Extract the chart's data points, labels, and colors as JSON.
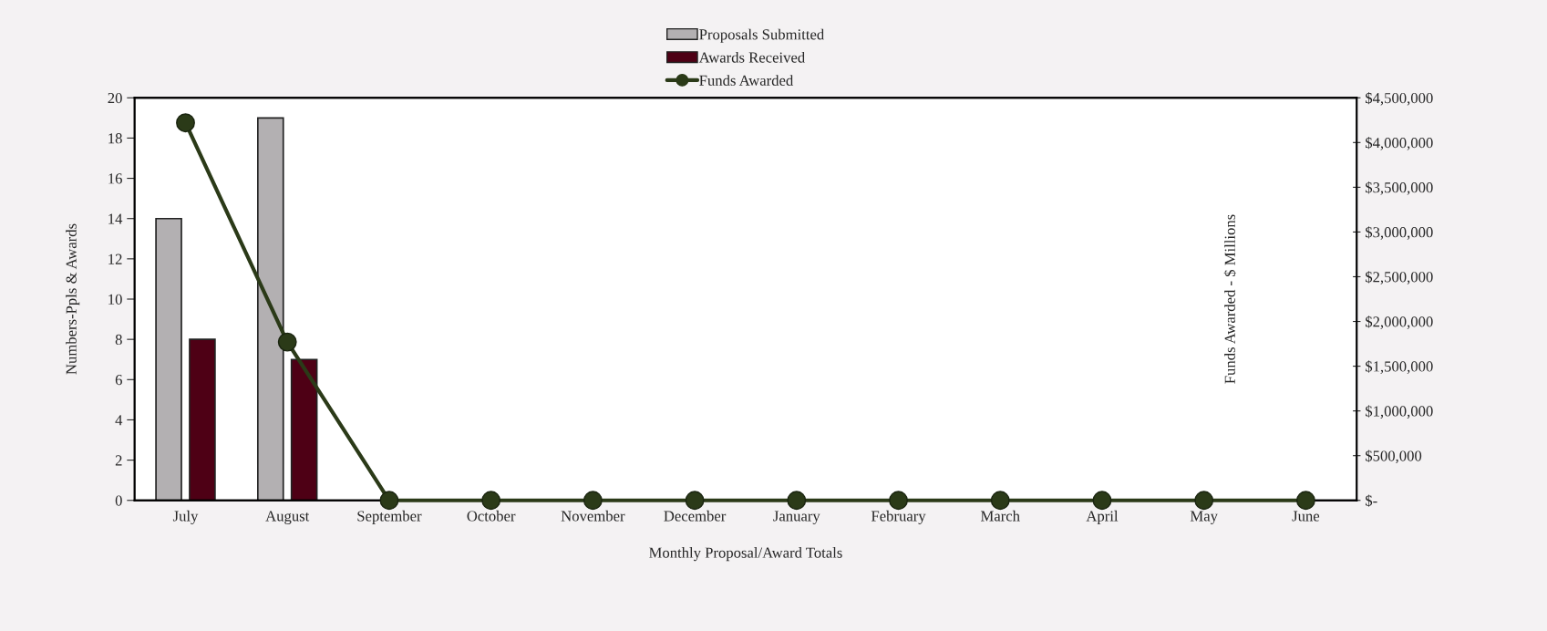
{
  "chart_data": {
    "type": "bar",
    "xlabel": "Monthly Proposal/Award Totals",
    "ylabel": "Numbers-Ppls & Awards",
    "y2label": "Funds Awarded - $ Millions",
    "categories": [
      "July",
      "August",
      "September",
      "October",
      "November",
      "December",
      "January",
      "February",
      "March",
      "April",
      "May",
      "June"
    ],
    "series": [
      {
        "name": "Proposals Submitted",
        "color": "#b3b0b2",
        "values": [
          14,
          19,
          null,
          null,
          null,
          null,
          null,
          null,
          null,
          null,
          null,
          null
        ]
      },
      {
        "name": "Awards Received",
        "color": "#4e0015",
        "values": [
          8,
          7,
          null,
          null,
          null,
          null,
          null,
          null,
          null,
          null,
          null,
          null
        ]
      },
      {
        "name": "Funds Awarded",
        "type": "line",
        "axis": "y2",
        "color": "#2b3a18",
        "marker": "circle",
        "values": [
          4220000,
          1770000,
          0,
          0,
          0,
          0,
          0,
          0,
          0,
          0,
          0,
          0
        ]
      }
    ],
    "ylim": [
      0,
      20
    ],
    "yticks": [
      0,
      2,
      4,
      6,
      8,
      10,
      12,
      14,
      16,
      18,
      20
    ],
    "y2lim": [
      0,
      4500000
    ],
    "y2ticks": [
      {
        "value": 0,
        "label": "$-"
      },
      {
        "value": 500000,
        "label": "$500,000"
      },
      {
        "value": 1000000,
        "label": "$1,000,000"
      },
      {
        "value": 1500000,
        "label": "$1,500,000"
      },
      {
        "value": 2000000,
        "label": "$2,000,000"
      },
      {
        "value": 2500000,
        "label": "$2,500,000"
      },
      {
        "value": 3000000,
        "label": "$3,000,000"
      },
      {
        "value": 3500000,
        "label": "$3,500,000"
      },
      {
        "value": 4000000,
        "label": "$4,000,000"
      },
      {
        "value": 4500000,
        "label": "$4,500,000"
      }
    ],
    "grid": false,
    "legend": "top"
  }
}
